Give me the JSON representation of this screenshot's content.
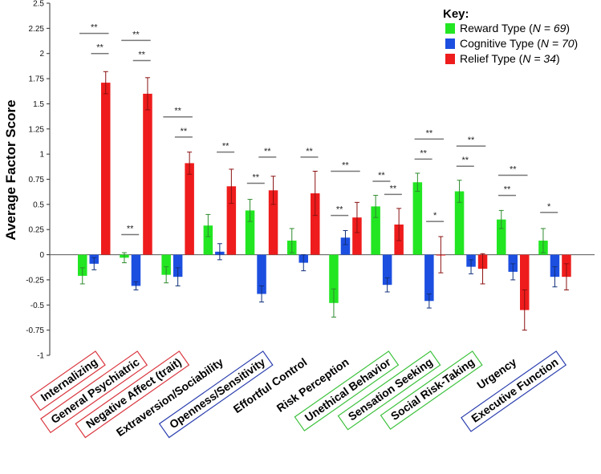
{
  "chart_data": {
    "type": "bar",
    "ylabel": "Average Factor Score",
    "ylim": [
      -1,
      2.5
    ],
    "yticks": [
      -1,
      -0.75,
      -0.5,
      -0.25,
      0,
      0.25,
      0.5,
      0.75,
      1,
      1.25,
      1.5,
      1.75,
      2,
      2.25,
      2.5
    ],
    "ytick_labels": [
      "-1",
      "-0.75",
      "-0.5",
      "-0.25",
      "0",
      "0.25",
      "0.5",
      "0.75",
      "1",
      "1.25",
      "1.5",
      "1.75",
      "2",
      "2.25",
      "2.5"
    ],
    "categories": [
      "Internalizing",
      "General Psychiatric",
      "Negative Affect (trait)",
      "Extraversion/Sociability",
      "Openness/Sensitivity",
      "Effortful Control",
      "Risk Perception",
      "Unethical Behavior",
      "Sensation Seeking",
      "Social Risk-Taking",
      "Urgency",
      "Executive Function"
    ],
    "category_box_colors": [
      "#d9363e",
      "#d9363e",
      "#d9363e",
      "",
      "#2b3fae",
      "",
      "",
      "#3cc23c",
      "#3cc23c",
      "#3cc23c",
      "",
      "#2b3fae"
    ],
    "series": [
      {
        "label": "Reward Type",
        "n": "N = 69",
        "color": "#22e622",
        "values": [
          -0.21,
          -0.03,
          -0.2,
          0.29,
          0.44,
          0.14,
          -0.48,
          0.48,
          0.72,
          0.63,
          0.35,
          0.14
        ],
        "errors": [
          0.08,
          0.05,
          0.08,
          0.11,
          0.11,
          0.12,
          0.14,
          0.11,
          0.09,
          0.11,
          0.09,
          0.12
        ]
      },
      {
        "label": "Cognitive Type",
        "n": "N = 70",
        "color": "#1c4fe0",
        "values": [
          -0.09,
          -0.31,
          -0.22,
          0.03,
          -0.39,
          -0.08,
          0.17,
          -0.3,
          -0.46,
          -0.12,
          -0.17,
          -0.22
        ],
        "errors": [
          0.06,
          0.04,
          0.09,
          0.08,
          0.08,
          0.08,
          0.07,
          0.07,
          0.07,
          0.07,
          0.08,
          0.1
        ]
      },
      {
        "label": "Relief Type",
        "n": "N = 34",
        "color": "#ee1c1c",
        "values": [
          1.71,
          1.6,
          0.91,
          0.68,
          0.64,
          0.61,
          0.37,
          0.3,
          0.0,
          -0.14,
          -0.55,
          -0.22
        ],
        "errors": [
          0.11,
          0.16,
          0.11,
          0.17,
          0.14,
          0.22,
          0.15,
          0.16,
          0.18,
          0.15,
          0.2,
          0.13
        ]
      }
    ],
    "significance": [
      {
        "group": 0,
        "pair": "reward-relief",
        "label": "**",
        "y": 2.2
      },
      {
        "group": 0,
        "pair": "cognitive-relief",
        "label": "**",
        "y": 2.0
      },
      {
        "group": 1,
        "pair": "reward-relief",
        "label": "**",
        "y": 2.13
      },
      {
        "group": 1,
        "pair": "cognitive-relief",
        "label": "**",
        "y": 1.93
      },
      {
        "group": 1,
        "pair": "reward-cognitive",
        "label": "**",
        "y": 0.2
      },
      {
        "group": 2,
        "pair": "reward-relief",
        "label": "**",
        "y": 1.37
      },
      {
        "group": 2,
        "pair": "cognitive-relief",
        "label": "**",
        "y": 1.17
      },
      {
        "group": 3,
        "pair": "cognitive-relief",
        "label": "**",
        "y": 1.02
      },
      {
        "group": 4,
        "pair": "cognitive-relief",
        "label": "**",
        "y": 0.97
      },
      {
        "group": 4,
        "pair": "reward-cognitive",
        "label": "**",
        "y": 0.71
      },
      {
        "group": 5,
        "pair": "cognitive-relief",
        "label": "**",
        "y": 0.97
      },
      {
        "group": 6,
        "pair": "reward-relief",
        "label": "**",
        "y": 0.83
      },
      {
        "group": 6,
        "pair": "reward-cognitive",
        "label": "**",
        "y": 0.39
      },
      {
        "group": 7,
        "pair": "reward-cognitive",
        "label": "**",
        "y": 0.73
      },
      {
        "group": 7,
        "pair": "cognitive-relief",
        "label": "**",
        "y": 0.6
      },
      {
        "group": 8,
        "pair": "reward-relief",
        "label": "**",
        "y": 1.15
      },
      {
        "group": 8,
        "pair": "reward-cognitive",
        "label": "**",
        "y": 0.95
      },
      {
        "group": 8,
        "pair": "cognitive-relief",
        "label": "*",
        "y": 0.33
      },
      {
        "group": 9,
        "pair": "reward-relief",
        "label": "**",
        "y": 1.08
      },
      {
        "group": 9,
        "pair": "reward-cognitive",
        "label": "**",
        "y": 0.88
      },
      {
        "group": 10,
        "pair": "reward-relief",
        "label": "**",
        "y": 0.79
      },
      {
        "group": 10,
        "pair": "reward-cognitive",
        "label": "**",
        "y": 0.59
      },
      {
        "group": 11,
        "pair": "reward-cognitive",
        "label": "*",
        "y": 0.42
      }
    ],
    "legend": {
      "title": "Key:",
      "position": "top-right"
    }
  }
}
